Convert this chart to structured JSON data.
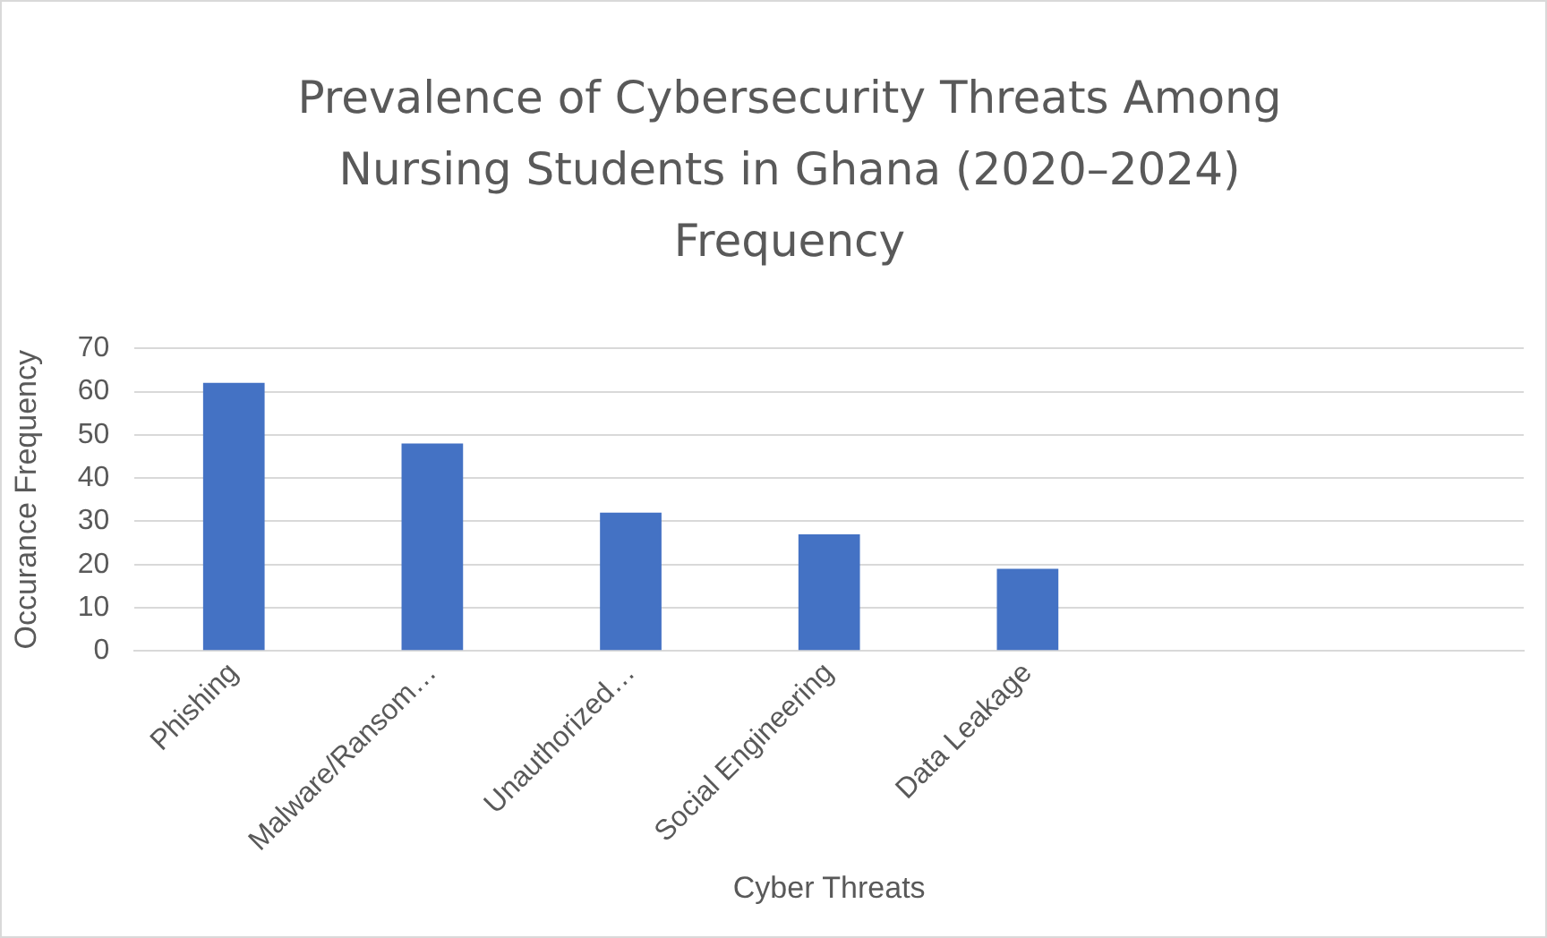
{
  "chart_data": {
    "type": "bar",
    "title": "Prevalence of Cybersecurity Threats Among Nursing Students in Ghana (2020–2024)",
    "subtitle": "Frequency",
    "xlabel": "Cyber Threats",
    "ylabel": "Occurance Frequency",
    "categories": [
      "Phishing",
      "Malware/Ransom…",
      "Unauthorized…",
      "Social Engineering",
      "Data Leakage",
      null,
      null
    ],
    "values": [
      62,
      48,
      32,
      27,
      19,
      null,
      null
    ],
    "color": "#4472c4",
    "ylim": [
      0,
      70
    ],
    "yticks": [
      0,
      10,
      20,
      30,
      40,
      50,
      60,
      70
    ],
    "grid": "y",
    "legend": false
  }
}
